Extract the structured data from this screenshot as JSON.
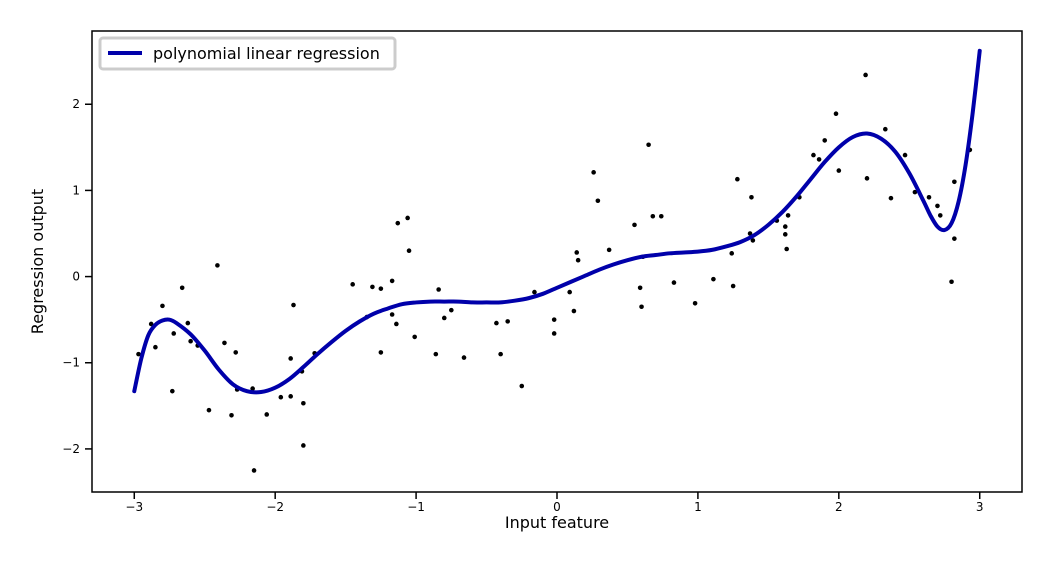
{
  "chart_data": {
    "type": "scatter",
    "title": "",
    "xlabel": "Input feature",
    "ylabel": "Regression output",
    "xlim": [
      -3.3,
      3.3
    ],
    "ylim": [
      -2.5,
      2.85
    ],
    "xticks": [
      -3,
      -2,
      -1,
      0,
      1,
      2,
      3
    ],
    "yticks": [
      -2,
      -1,
      0,
      1,
      2
    ],
    "xtick_labels": [
      "−3",
      "−2",
      "−1",
      "0",
      "1",
      "2",
      "3"
    ],
    "ytick_labels": [
      "−2",
      "−1",
      "0",
      "1",
      "2"
    ],
    "grid": false,
    "legend": {
      "position": "top-left",
      "entries": [
        "polynomial linear regression"
      ]
    },
    "colors": {
      "line": "#0000aa",
      "points": "#000000",
      "frame": "#000000"
    },
    "series": [
      {
        "name": "polynomial linear regression",
        "kind": "line",
        "points": [
          [
            -3.0,
            -1.33
          ],
          [
            -2.95,
            -0.95
          ],
          [
            -2.9,
            -0.68
          ],
          [
            -2.85,
            -0.56
          ],
          [
            -2.8,
            -0.51
          ],
          [
            -2.75,
            -0.5
          ],
          [
            -2.7,
            -0.54
          ],
          [
            -2.6,
            -0.67
          ],
          [
            -2.5,
            -0.86
          ],
          [
            -2.4,
            -1.08
          ],
          [
            -2.3,
            -1.25
          ],
          [
            -2.2,
            -1.33
          ],
          [
            -2.1,
            -1.34
          ],
          [
            -2.0,
            -1.29
          ],
          [
            -1.9,
            -1.19
          ],
          [
            -1.8,
            -1.05
          ],
          [
            -1.7,
            -0.9
          ],
          [
            -1.6,
            -0.76
          ],
          [
            -1.5,
            -0.63
          ],
          [
            -1.4,
            -0.52
          ],
          [
            -1.3,
            -0.43
          ],
          [
            -1.2,
            -0.37
          ],
          [
            -1.1,
            -0.32
          ],
          [
            -1.0,
            -0.3
          ],
          [
            -0.9,
            -0.29
          ],
          [
            -0.8,
            -0.29
          ],
          [
            -0.7,
            -0.29
          ],
          [
            -0.6,
            -0.3
          ],
          [
            -0.5,
            -0.3
          ],
          [
            -0.4,
            -0.3
          ],
          [
            -0.3,
            -0.28
          ],
          [
            -0.2,
            -0.25
          ],
          [
            -0.1,
            -0.2
          ],
          [
            0.0,
            -0.13
          ],
          [
            0.1,
            -0.06
          ],
          [
            0.2,
            0.01
          ],
          [
            0.3,
            0.08
          ],
          [
            0.4,
            0.14
          ],
          [
            0.5,
            0.19
          ],
          [
            0.6,
            0.23
          ],
          [
            0.7,
            0.25
          ],
          [
            0.8,
            0.27
          ],
          [
            0.9,
            0.28
          ],
          [
            1.0,
            0.29
          ],
          [
            1.1,
            0.31
          ],
          [
            1.2,
            0.35
          ],
          [
            1.3,
            0.4
          ],
          [
            1.4,
            0.48
          ],
          [
            1.5,
            0.6
          ],
          [
            1.6,
            0.75
          ],
          [
            1.7,
            0.93
          ],
          [
            1.8,
            1.13
          ],
          [
            1.9,
            1.33
          ],
          [
            2.0,
            1.5
          ],
          [
            2.1,
            1.62
          ],
          [
            2.2,
            1.66
          ],
          [
            2.3,
            1.6
          ],
          [
            2.4,
            1.45
          ],
          [
            2.5,
            1.2
          ],
          [
            2.6,
            0.88
          ],
          [
            2.65,
            0.71
          ],
          [
            2.7,
            0.58
          ],
          [
            2.75,
            0.54
          ],
          [
            2.8,
            0.62
          ],
          [
            2.85,
            0.87
          ],
          [
            2.9,
            1.3
          ],
          [
            2.95,
            1.9
          ],
          [
            3.0,
            2.62
          ]
        ]
      },
      {
        "name": "",
        "kind": "scatter",
        "points": [
          [
            -2.97,
            -0.9
          ],
          [
            -2.88,
            -0.55
          ],
          [
            -2.85,
            -0.82
          ],
          [
            -2.8,
            -0.34
          ],
          [
            -2.73,
            -1.33
          ],
          [
            -2.72,
            -0.66
          ],
          [
            -2.66,
            -0.13
          ],
          [
            -2.62,
            -0.54
          ],
          [
            -2.6,
            -0.75
          ],
          [
            -2.55,
            -0.8
          ],
          [
            -2.47,
            -1.55
          ],
          [
            -2.41,
            0.13
          ],
          [
            -2.36,
            -0.77
          ],
          [
            -2.31,
            -1.61
          ],
          [
            -2.28,
            -0.88
          ],
          [
            -2.27,
            -1.31
          ],
          [
            -2.16,
            -1.3
          ],
          [
            -2.15,
            -2.25
          ],
          [
            -2.06,
            -1.6
          ],
          [
            -1.96,
            -1.4
          ],
          [
            -1.89,
            -0.95
          ],
          [
            -1.89,
            -1.39
          ],
          [
            -1.87,
            -0.33
          ],
          [
            -1.81,
            -1.1
          ],
          [
            -1.8,
            -1.47
          ],
          [
            -1.8,
            -1.96
          ],
          [
            -1.72,
            -0.89
          ],
          [
            -1.45,
            -0.09
          ],
          [
            -1.35,
            -0.47
          ],
          [
            -1.31,
            -0.12
          ],
          [
            -1.25,
            -0.14
          ],
          [
            -1.25,
            -0.88
          ],
          [
            -1.17,
            -0.05
          ],
          [
            -1.17,
            -0.44
          ],
          [
            -1.14,
            -0.55
          ],
          [
            -1.13,
            0.62
          ],
          [
            -1.06,
            0.68
          ],
          [
            -1.05,
            0.3
          ],
          [
            -1.01,
            -0.7
          ],
          [
            -0.86,
            -0.9
          ],
          [
            -0.84,
            -0.15
          ],
          [
            -0.8,
            -0.48
          ],
          [
            -0.75,
            -0.39
          ],
          [
            -0.66,
            -0.94
          ],
          [
            -0.43,
            -0.54
          ],
          [
            -0.4,
            -0.9
          ],
          [
            -0.35,
            -0.52
          ],
          [
            -0.25,
            -1.27
          ],
          [
            -0.16,
            -0.18
          ],
          [
            -0.02,
            -0.5
          ],
          [
            -0.02,
            -0.66
          ],
          [
            0.09,
            -0.18
          ],
          [
            0.12,
            -0.4
          ],
          [
            0.14,
            0.28
          ],
          [
            0.15,
            0.19
          ],
          [
            0.26,
            1.21
          ],
          [
            0.29,
            0.88
          ],
          [
            0.37,
            0.31
          ],
          [
            0.55,
            0.6
          ],
          [
            0.59,
            -0.13
          ],
          [
            0.6,
            -0.35
          ],
          [
            0.61,
            0.23
          ],
          [
            0.65,
            1.53
          ],
          [
            0.68,
            0.7
          ],
          [
            0.74,
            0.7
          ],
          [
            0.83,
            -0.07
          ],
          [
            0.98,
            -0.31
          ],
          [
            1.11,
            -0.03
          ],
          [
            1.24,
            0.27
          ],
          [
            1.25,
            -0.11
          ],
          [
            1.28,
            1.13
          ],
          [
            1.37,
            0.5
          ],
          [
            1.38,
            0.92
          ],
          [
            1.39,
            0.42
          ],
          [
            1.56,
            0.65
          ],
          [
            1.62,
            0.58
          ],
          [
            1.62,
            0.49
          ],
          [
            1.63,
            0.32
          ],
          [
            1.64,
            0.71
          ],
          [
            1.72,
            0.92
          ],
          [
            1.82,
            1.41
          ],
          [
            1.86,
            1.36
          ],
          [
            1.9,
            1.58
          ],
          [
            1.98,
            1.89
          ],
          [
            2.0,
            1.23
          ],
          [
            2.19,
            2.34
          ],
          [
            2.2,
            1.14
          ],
          [
            2.33,
            1.71
          ],
          [
            2.37,
            0.91
          ],
          [
            2.47,
            1.41
          ],
          [
            2.54,
            0.98
          ],
          [
            2.64,
            0.92
          ],
          [
            2.7,
            0.82
          ],
          [
            2.72,
            0.71
          ],
          [
            2.8,
            -0.06
          ],
          [
            2.82,
            0.44
          ],
          [
            2.82,
            1.1
          ],
          [
            2.93,
            1.47
          ]
        ]
      }
    ]
  }
}
